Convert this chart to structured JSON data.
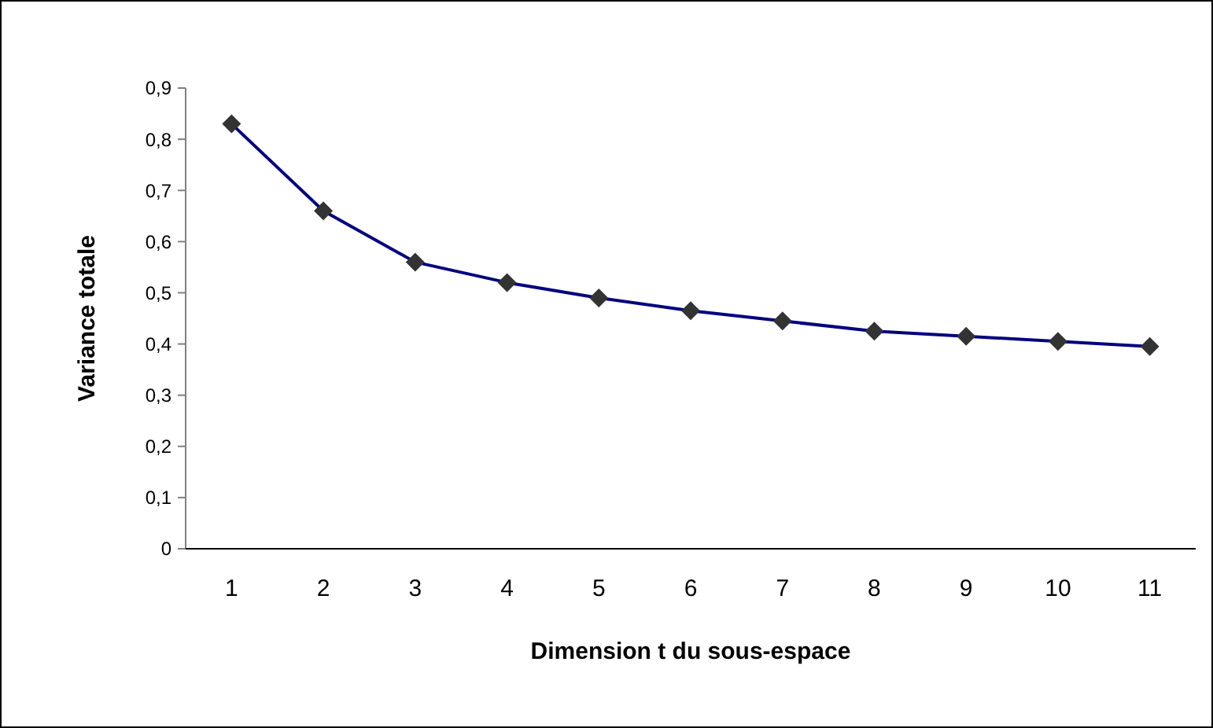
{
  "chart_data": {
    "type": "line",
    "xlabel": "Dimension t du sous-espace",
    "ylabel": "Variance totale",
    "categories": [
      "1",
      "2",
      "3",
      "4",
      "5",
      "6",
      "7",
      "8",
      "9",
      "10",
      "11"
    ],
    "series": [
      {
        "color": "#000080",
        "values": [
          0.83,
          0.66,
          0.56,
          0.52,
          0.49,
          0.465,
          0.445,
          0.425,
          0.415,
          0.405,
          0.395
        ]
      }
    ],
    "ylim": [
      0,
      0.9
    ],
    "yticks": [
      {
        "value": 0,
        "label": "0"
      },
      {
        "value": 0.1,
        "label": "0,1"
      },
      {
        "value": 0.2,
        "label": "0,2"
      },
      {
        "value": 0.3,
        "label": "0,3"
      },
      {
        "value": 0.4,
        "label": "0,4"
      },
      {
        "value": 0.5,
        "label": "0,5"
      },
      {
        "value": 0.6,
        "label": "0,6"
      },
      {
        "value": 0.7,
        "label": "0,7"
      },
      {
        "value": 0.8,
        "label": "0,8"
      },
      {
        "value": 0.9,
        "label": "0,9"
      }
    ],
    "marker": "diamond",
    "grid": false
  }
}
